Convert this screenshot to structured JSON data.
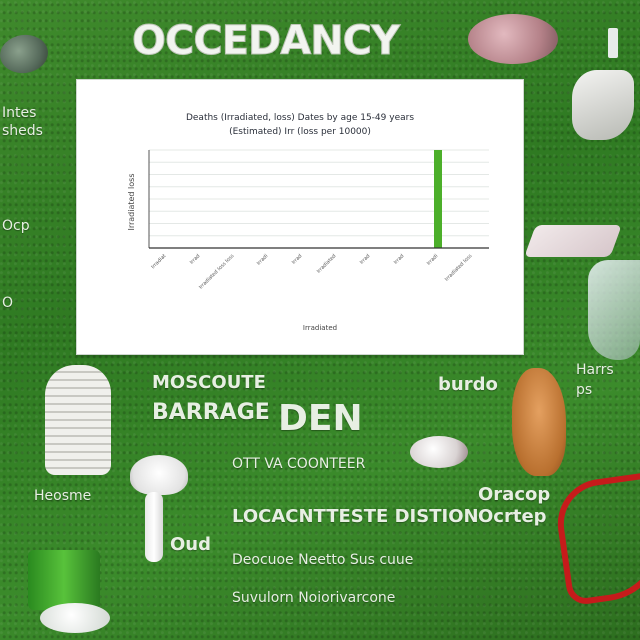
{
  "title": "OCCEDANCY",
  "chart": {
    "title_line1": "Deaths (Irradiated, loss) Dates by age 15-49 years",
    "title_line2": "(Estimated) Irr (loss per 10000)",
    "ylabel": "Irradiated loss",
    "xlabel": "Irradiated",
    "bar_color": "#4caf2a"
  },
  "chart_data": {
    "type": "bar",
    "title": "Deaths (Irradiated, loss) Dates by age 15-49 years",
    "subtitle": "(Estimated) Irr (loss per 10000)",
    "xlabel": "Irradiated",
    "ylabel": "Irradiated loss",
    "categories": [
      "Irradiat",
      "Irrad",
      "Irradiated loss loss",
      "Irradi",
      "Irrad",
      "Irradiated",
      "Irrad",
      "Irrad",
      "Irradi",
      "Irradiated loss"
    ],
    "values": [
      0,
      0,
      0,
      0,
      0,
      0,
      0,
      0,
      1,
      0
    ],
    "ylim": [
      0,
      1
    ],
    "grid": true
  },
  "labels": {
    "left_top": "Intes\nsheds",
    "left_mid": "Ocp",
    "left_small": "O",
    "mid_block_top": "MOSCOUTE",
    "mid_block_big": "DEN",
    "mid_block_caption": "BARRAGE",
    "right_mid": "burdo",
    "right_far": "Harrs\nps",
    "right_caption": "Oracop\nOcrtep",
    "bottom_label_left": "Heosme",
    "bottom_label_mid": "Oud",
    "bottom_text_1": "OTT VA COONTEER",
    "bottom_text_2": "LOCACNTTESTE DISTION",
    "bottom_text_3": "Deocuoe Neetto Sus cuue",
    "bottom_text_4": "Suvulorn Noiorivarcone"
  },
  "colors": {
    "grass": "#3a8a2a",
    "chart_bg": "#ffffff",
    "accent_red": "#c61b1b"
  }
}
